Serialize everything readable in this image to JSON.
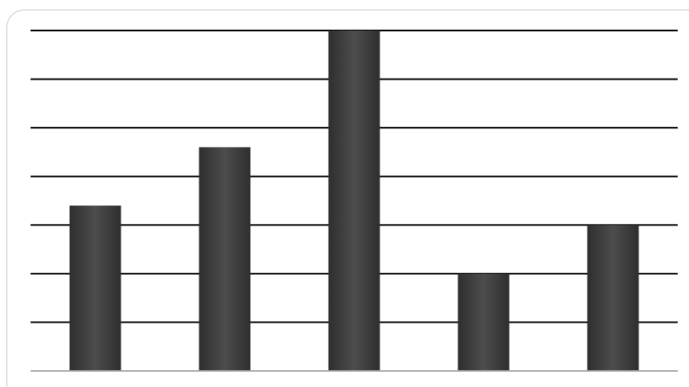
{
  "chart_data": {
    "type": "bar",
    "categories": [
      "",
      "",
      "",
      "",
      ""
    ],
    "series": [
      {
        "values": [
          3.4,
          4.6,
          7.0,
          2.0,
          3.0
        ]
      }
    ],
    "title": "",
    "xlabel": "",
    "ylabel": "",
    "ylim": [
      0,
      7
    ],
    "grid": true,
    "legend": "none",
    "bar_color": "#2e2e2e",
    "bar_highlight_color": "#4d4d4d",
    "gridline_color": "#000000",
    "axis_color": "#a6a6a6"
  }
}
